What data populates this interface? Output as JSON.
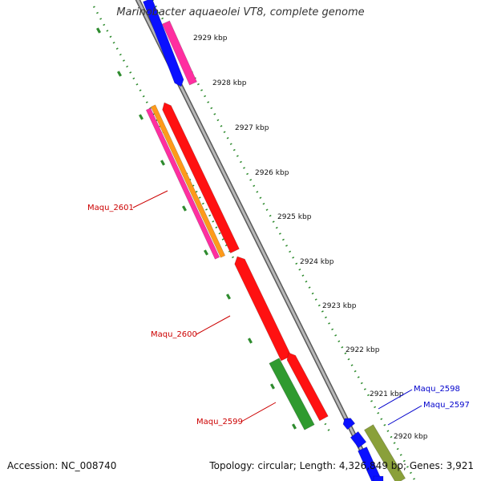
{
  "title": "Marinobacter aquaeolei VT8, complete genome",
  "footer": {
    "accession": "Accession: NC_008740",
    "summary": "Topology: circular; Length: 4,326,849 bp; Genes: 3,921"
  },
  "colors": {
    "backbone": "#8c8c8c",
    "ticks": "#2e8b2e",
    "red": "#ff1111",
    "magenta": "#ff2ea0",
    "orange": "#ff9a1a",
    "blue": "#0a10ff",
    "green": "#2f9a2f",
    "olive": "#8aa03a",
    "label_red": "#cc0000",
    "label_blue": "#0000cc"
  },
  "ruler": {
    "labels": [
      "2929 kbp",
      "2928 kbp",
      "2927 kbp",
      "2926 kbp",
      "2925 kbp",
      "2924 kbp",
      "2923 kbp",
      "2922 kbp",
      "2921 kbp",
      "2920 kbp"
    ]
  },
  "genes": [
    {
      "label": "Maqu_2601",
      "color": "label_red"
    },
    {
      "label": "Maqu_2600",
      "color": "label_red"
    },
    {
      "label": "Maqu_2599",
      "color": "label_red"
    },
    {
      "label": "Maqu_2598",
      "color": "label_blue"
    },
    {
      "label": "Maqu_2597",
      "color": "label_blue"
    }
  ]
}
